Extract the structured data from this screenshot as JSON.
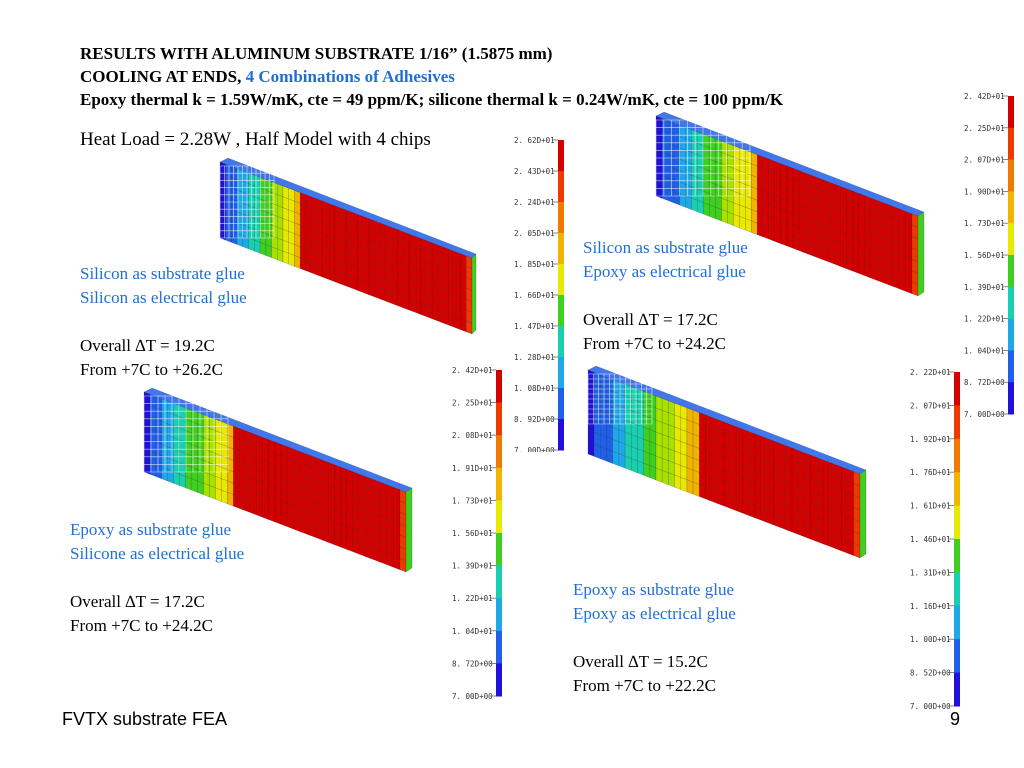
{
  "slide": {
    "title_line1": "RESULTS WITH ALUMINUM SUBSTRATE 1/16” (1.5875 mm)",
    "title_line2_prefix": "COOLING AT ENDS, ",
    "title_line2_highlight": "4 Combinations of Adhesives",
    "title_line3": "Epoxy thermal k = 1.59W/mK, cte = 49 ppm/K; silicone thermal k = 0.24W/mK, cte = 100 ppm/K",
    "heat_load": "Heat Load = 2.28W , Half Model with 4 chips",
    "footer_left": "FVTX substrate FEA",
    "page_number": "9"
  },
  "cases": [
    {
      "substrate_glue": "Silicon as substrate glue",
      "electrical_glue": "Silicon as electrical glue",
      "delta_t": "Overall ∆T = 19.2C",
      "range": "From +7C to +26.2C",
      "legend_ticks": [
        "2. 62D+01",
        "2. 43D+01",
        "2. 24D+01",
        "2. 05D+01",
        "1. 85D+01",
        "1. 66D+01",
        "1. 47D+01",
        "1. 28D+01",
        "1. 08D+01",
        "8. 92D+00",
        "7. 00D+00"
      ]
    },
    {
      "substrate_glue": "Silicon as substrate glue",
      "electrical_glue": "Epoxy as electrical glue",
      "delta_t": "Overall ∆T = 17.2C",
      "range": "From +7C to +24.2C",
      "legend_ticks": [
        "2. 42D+01",
        "2. 25D+01",
        "2. 07D+01",
        "1. 90D+01",
        "1. 73D+01",
        "1. 56D+01",
        "1. 39D+01",
        "1. 22D+01",
        "1. 04D+01",
        "8. 72D+00",
        "7. 00D+00"
      ]
    },
    {
      "substrate_glue": "Epoxy as substrate glue",
      "electrical_glue": "Silicone as electrical glue",
      "delta_t": "Overall ∆T = 17.2C",
      "range": "From +7C to +24.2C",
      "legend_ticks": [
        "2. 42D+01",
        "2. 25D+01",
        "2. 08D+01",
        "1. 91D+01",
        "1. 73D+01",
        "1. 56D+01",
        "1. 39D+01",
        "1. 22D+01",
        "1. 04D+01",
        "8. 72D+00",
        "7. 00D+00"
      ]
    },
    {
      "substrate_glue": "Epoxy as substrate glue",
      "electrical_glue": "Epoxy as electrical glue",
      "delta_t": "Overall ∆T = 15.2C",
      "range": "From +7C to +22.2C",
      "legend_ticks": [
        "2. 22D+01",
        "2. 07D+01",
        "1. 92D+01",
        "1. 76D+01",
        "1. 61D+01",
        "1. 46D+01",
        "1. 31D+01",
        "1. 16D+01",
        "1. 00D+01",
        "8. 52D+00",
        "7. 00D+00"
      ]
    }
  ],
  "colormap": [
    "#d40000",
    "#ec3a00",
    "#f07a00",
    "#f0b400",
    "#e8e800",
    "#a8e000",
    "#3fcf20",
    "#18d0b0",
    "#1ea8e8",
    "#2060e8",
    "#2010d8"
  ]
}
